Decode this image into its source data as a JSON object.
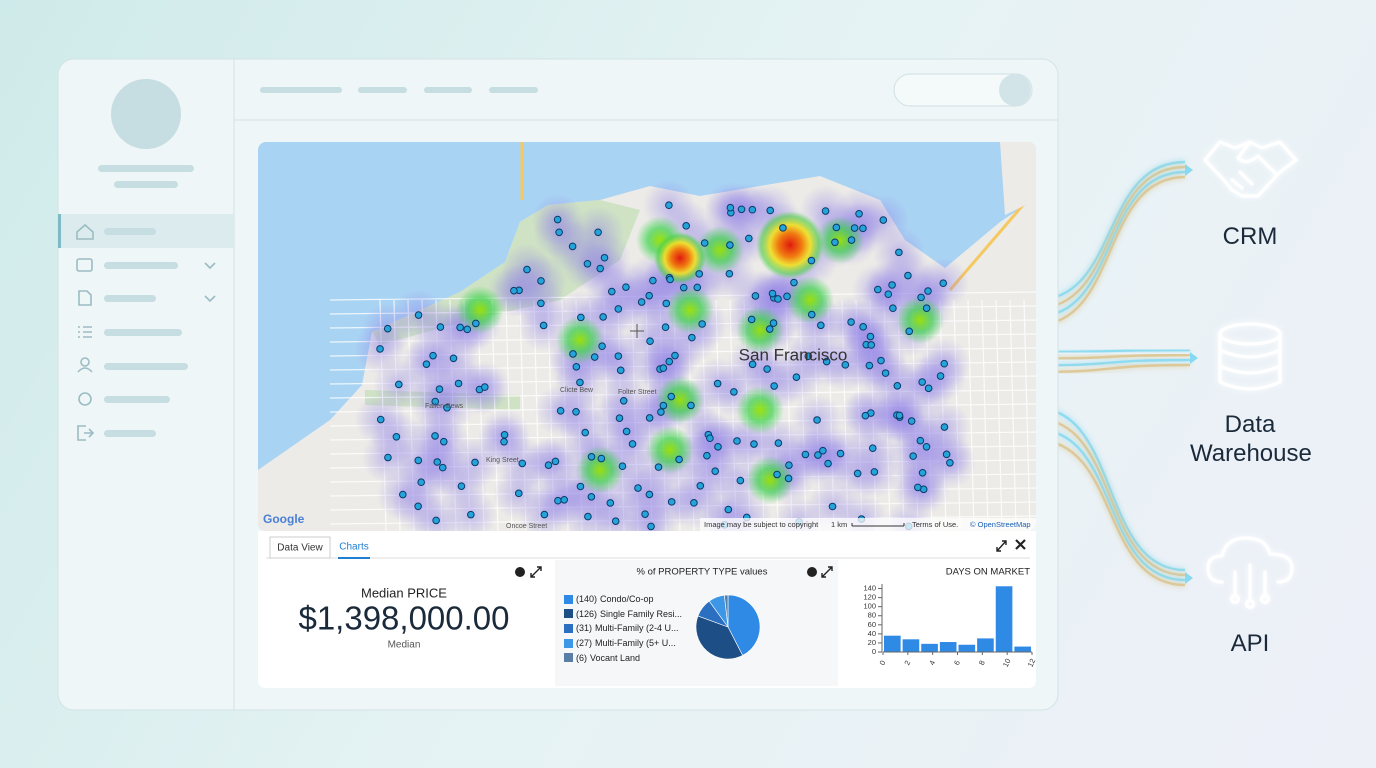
{
  "map": {
    "city_label": "San Francisco",
    "street_labels": [
      "Fallen Bews",
      "Folter Street",
      "King Sreet",
      "Oncoe Street",
      "Clicte Bew"
    ],
    "logo": "Google",
    "attribution": "Image may be subject to copyright",
    "scale": "1 km",
    "terms": "Terms of Use.",
    "osm": "© OpenStreetMap"
  },
  "tabs": [
    "Data View",
    "Charts"
  ],
  "metric": {
    "title": "Median PRICE",
    "value": "$1,398,000.00",
    "caption": "Median"
  },
  "chart_data": [
    {
      "type": "pie",
      "title": "% of PROPERTY TYPE values",
      "categories": [
        "Condo/Co-op",
        "Single Family Resi...",
        "Multi-Family (2-4 U...",
        "Multi-Family (5+ U...",
        "Vocant Land"
      ],
      "values": [
        140,
        126,
        31,
        27,
        6
      ],
      "value_labels": [
        "(140)",
        "(126)",
        "(31)",
        "(27)",
        "(6)"
      ],
      "colors": [
        "#2f8ae5",
        "#1d4f86",
        "#2a6fc0",
        "#3d96e6",
        "#5a7fa6"
      ]
    },
    {
      "type": "histogram",
      "title": "DAYS ON MARKET",
      "bins": [
        0,
        1.5,
        3,
        4.5,
        6,
        7.5,
        9,
        10.5,
        12
      ],
      "values": [
        36,
        28,
        18,
        22,
        16,
        30,
        145,
        12
      ],
      "color": "#2f8ae5",
      "xlim": [
        0,
        12
      ],
      "xticks": [
        0,
        2,
        4,
        6,
        8,
        10,
        12
      ],
      "ylim": [
        0,
        150
      ],
      "yticks": [
        0,
        20,
        40,
        60,
        80,
        100,
        120,
        140
      ]
    }
  ],
  "integrations": [
    "CRM",
    "Data Warehouse",
    "API"
  ]
}
